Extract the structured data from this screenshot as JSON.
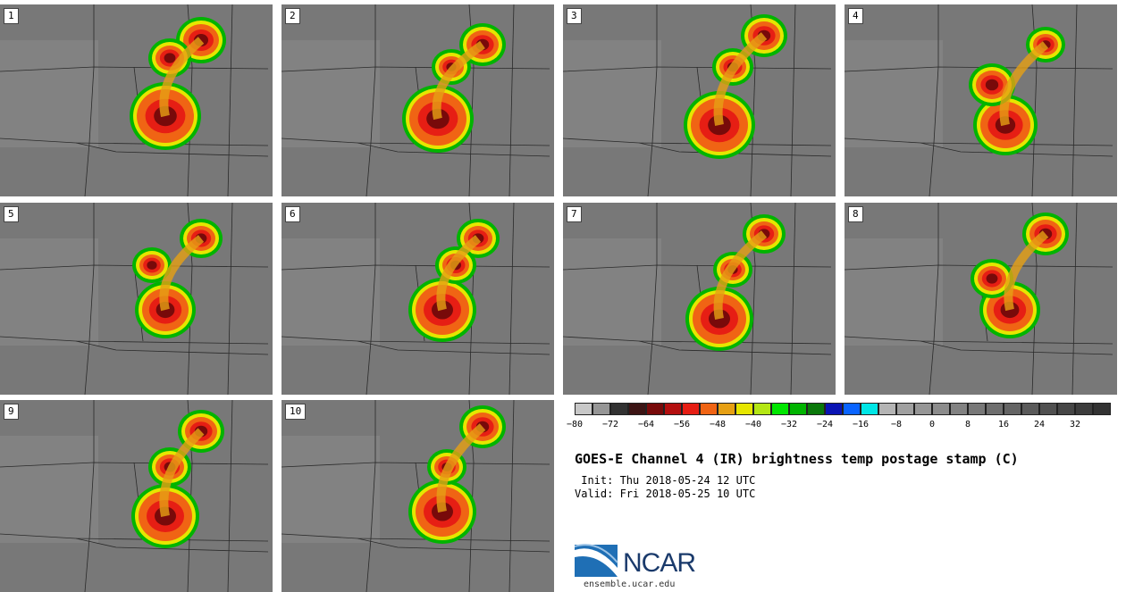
{
  "panels": [
    {
      "label": "1"
    },
    {
      "label": "2"
    },
    {
      "label": "3"
    },
    {
      "label": "4"
    },
    {
      "label": "5"
    },
    {
      "label": "6"
    },
    {
      "label": "7"
    },
    {
      "label": "8"
    },
    {
      "label": "9"
    },
    {
      "label": "10"
    }
  ],
  "legend": {
    "colors": [
      "#c8c8c8",
      "#969696",
      "#323232",
      "#3c1414",
      "#780a0a",
      "#b40f0f",
      "#e61e14",
      "#f06414",
      "#e6a014",
      "#e6e600",
      "#b4e614",
      "#00e600",
      "#00b400",
      "#0a780a",
      "#0a14b4",
      "#0a64ff",
      "#00e6e6",
      "#b4b4b4",
      "#a0a0a0",
      "#969696",
      "#8c8c8c",
      "#828282",
      "#787878",
      "#6e6e6e",
      "#646464",
      "#5a5a5a",
      "#505050",
      "#464646",
      "#3c3c3c",
      "#323232"
    ],
    "ticks": [
      "−80",
      "−72",
      "−64",
      "−56",
      "−48",
      "−40",
      "−32",
      "−24",
      "−16",
      "−8",
      "0",
      "8",
      "16",
      "24",
      "32"
    ]
  },
  "title": "GOES-E Channel 4 (IR) brightness temp postage stamp (C)",
  "init": " Init: Thu 2018-05-24 12 UTC",
  "valid": "Valid: Fri 2018-05-25 10 UTC",
  "logo_text": "NCAR",
  "url": "ensemble.ucar.edu"
}
